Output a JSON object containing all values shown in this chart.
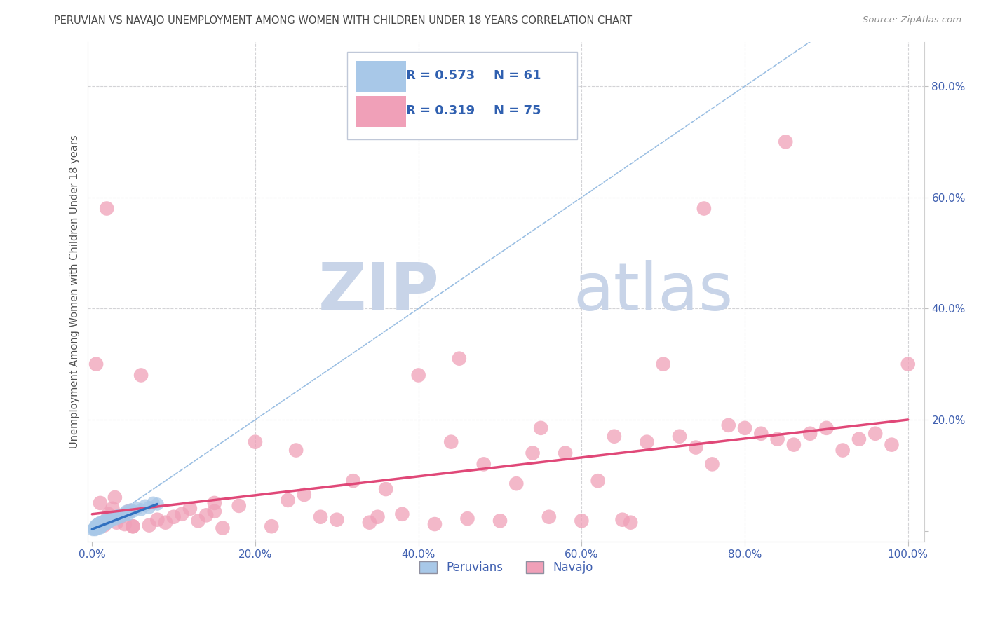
{
  "title": "PERUVIAN VS NAVAJO UNEMPLOYMENT AMONG WOMEN WITH CHILDREN UNDER 18 YEARS CORRELATION CHART",
  "source": "Source: ZipAtlas.com",
  "ylabel": "Unemployment Among Women with Children Under 18 years",
  "xlim": [
    -0.005,
    1.02
  ],
  "ylim": [
    -0.02,
    0.88
  ],
  "xticks": [
    0.0,
    0.2,
    0.4,
    0.6,
    0.8,
    1.0
  ],
  "yticks": [
    0.0,
    0.2,
    0.4,
    0.6,
    0.8
  ],
  "xtick_labels": [
    "0.0%",
    "20.0%",
    "40.0%",
    "60.0%",
    "80.0%",
    "100.0%"
  ],
  "ytick_labels": [
    "",
    "20.0%",
    "40.0%",
    "60.0%",
    "80.0%"
  ],
  "peruvian_color": "#a8c8e8",
  "navajo_color": "#f0a0b8",
  "peruvian_line_color": "#3070c0",
  "navajo_line_color": "#e04878",
  "ref_line_color": "#90b8e0",
  "watermark_zip_color": "#c8d4e8",
  "watermark_atlas_color": "#c8d4e8",
  "grid_color": "#c8c8cc",
  "title_color": "#484848",
  "axis_label_color": "#505050",
  "tick_label_color": "#4060b0",
  "legend_text_color": "#3060b0",
  "peruvian_x": [
    0.001,
    0.002,
    0.003,
    0.003,
    0.004,
    0.004,
    0.004,
    0.005,
    0.005,
    0.005,
    0.005,
    0.006,
    0.006,
    0.006,
    0.007,
    0.007,
    0.007,
    0.008,
    0.008,
    0.008,
    0.009,
    0.009,
    0.01,
    0.01,
    0.01,
    0.01,
    0.011,
    0.011,
    0.012,
    0.012,
    0.013,
    0.013,
    0.014,
    0.014,
    0.015,
    0.015,
    0.016,
    0.017,
    0.018,
    0.019,
    0.02,
    0.02,
    0.022,
    0.024,
    0.025,
    0.027,
    0.03,
    0.033,
    0.035,
    0.038,
    0.04,
    0.042,
    0.045,
    0.048,
    0.05,
    0.055,
    0.06,
    0.065,
    0.07,
    0.075,
    0.08
  ],
  "peruvian_y": [
    0.002,
    0.003,
    0.004,
    0.005,
    0.002,
    0.005,
    0.008,
    0.003,
    0.005,
    0.008,
    0.01,
    0.004,
    0.006,
    0.01,
    0.005,
    0.008,
    0.012,
    0.005,
    0.009,
    0.013,
    0.006,
    0.01,
    0.005,
    0.008,
    0.012,
    0.015,
    0.008,
    0.013,
    0.008,
    0.014,
    0.01,
    0.016,
    0.01,
    0.017,
    0.012,
    0.018,
    0.013,
    0.015,
    0.014,
    0.016,
    0.015,
    0.02,
    0.018,
    0.022,
    0.02,
    0.025,
    0.022,
    0.028,
    0.025,
    0.03,
    0.028,
    0.035,
    0.03,
    0.038,
    0.035,
    0.04,
    0.038,
    0.045,
    0.042,
    0.05,
    0.048
  ],
  "navajo_x": [
    0.005,
    0.01,
    0.015,
    0.018,
    0.02,
    0.022,
    0.025,
    0.028,
    0.03,
    0.035,
    0.04,
    0.045,
    0.05,
    0.06,
    0.07,
    0.08,
    0.09,
    0.1,
    0.11,
    0.12,
    0.13,
    0.14,
    0.15,
    0.16,
    0.18,
    0.2,
    0.22,
    0.24,
    0.26,
    0.28,
    0.3,
    0.32,
    0.34,
    0.36,
    0.38,
    0.4,
    0.42,
    0.44,
    0.46,
    0.48,
    0.5,
    0.52,
    0.54,
    0.56,
    0.58,
    0.6,
    0.62,
    0.64,
    0.66,
    0.68,
    0.7,
    0.72,
    0.74,
    0.76,
    0.78,
    0.8,
    0.82,
    0.84,
    0.86,
    0.88,
    0.9,
    0.92,
    0.94,
    0.96,
    0.98,
    1.0,
    0.85,
    0.75,
    0.65,
    0.55,
    0.45,
    0.35,
    0.25,
    0.15,
    0.05
  ],
  "navajo_y": [
    0.3,
    0.05,
    0.01,
    0.58,
    0.03,
    0.02,
    0.04,
    0.06,
    0.015,
    0.025,
    0.012,
    0.035,
    0.008,
    0.28,
    0.01,
    0.02,
    0.015,
    0.025,
    0.03,
    0.04,
    0.018,
    0.028,
    0.035,
    0.005,
    0.045,
    0.16,
    0.008,
    0.055,
    0.065,
    0.025,
    0.02,
    0.09,
    0.015,
    0.075,
    0.03,
    0.28,
    0.012,
    0.16,
    0.022,
    0.12,
    0.018,
    0.085,
    0.14,
    0.025,
    0.14,
    0.018,
    0.09,
    0.17,
    0.015,
    0.16,
    0.3,
    0.17,
    0.15,
    0.12,
    0.19,
    0.185,
    0.175,
    0.165,
    0.155,
    0.175,
    0.185,
    0.145,
    0.165,
    0.175,
    0.155,
    0.3,
    0.7,
    0.58,
    0.02,
    0.185,
    0.31,
    0.025,
    0.145,
    0.05,
    0.008
  ],
  "navajo_trend_x": [
    0.0,
    1.0
  ],
  "navajo_trend_y": [
    0.03,
    0.2
  ],
  "peruvian_trend_x": [
    0.0,
    0.08
  ],
  "peruvian_trend_y": [
    0.003,
    0.048
  ]
}
